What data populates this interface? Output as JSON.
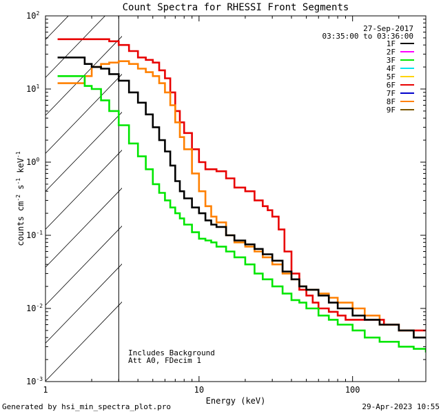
{
  "chart_data": {
    "type": "line",
    "title": "Count Spectra for RHESSI Front Segments",
    "xlabel": "Energy (keV)",
    "ylabel": "counts cm",
    "ylabel_sup1": "-2",
    "ylabel_mid1": " s",
    "ylabel_sup2": "-1",
    "ylabel_mid2": " keV",
    "ylabel_sup3": "-1",
    "xscale": "log",
    "yscale": "log",
    "xlim": [
      1,
      300
    ],
    "ylim": [
      0.001,
      100
    ],
    "x_tick_labels": [
      {
        "value": 1,
        "label": "1"
      },
      {
        "value": 10,
        "label": "10"
      },
      {
        "value": 100,
        "label": "100"
      }
    ],
    "y_tick_labels": [
      {
        "value": 100,
        "base": "10",
        "exp": "2"
      },
      {
        "value": 10,
        "base": "10",
        "exp": "1"
      },
      {
        "value": 1,
        "base": "10",
        "exp": "0"
      },
      {
        "value": 0.1,
        "base": "10",
        "exp": "-1"
      },
      {
        "value": 0.01,
        "base": "10",
        "exp": "-2"
      },
      {
        "value": 0.001,
        "base": "10",
        "exp": "-3"
      }
    ],
    "shaded_region": {
      "from": 1,
      "to": 3,
      "pattern": "diagonal hatch"
    },
    "date": "27-Sep-2017",
    "time_range": "03:35:00 to 03:36:00",
    "annotations": [
      "Includes Background",
      "Att A0, FDecim 1"
    ],
    "legend": [
      {
        "name": "1F",
        "color": "#000000"
      },
      {
        "name": "2F",
        "color": "#ff00ff"
      },
      {
        "name": "3F",
        "color": "#00e600"
      },
      {
        "name": "4F",
        "color": "#00e5ee"
      },
      {
        "name": "5F",
        "color": "#ffd400"
      },
      {
        "name": "6F",
        "color": "#e80000"
      },
      {
        "name": "7F",
        "color": "#0000cc"
      },
      {
        "name": "8F",
        "color": "#ff8000"
      },
      {
        "name": "9F",
        "color": "#7a5500"
      }
    ],
    "series": [
      {
        "name": "6F",
        "color": "#e80000",
        "x": [
          1.2,
          2.0,
          2.6,
          3.0,
          3.5,
          4.0,
          4.5,
          5.0,
          5.5,
          6.0,
          6.5,
          7.0,
          7.5,
          8.0,
          9.0,
          10.0,
          11.0,
          13.0,
          15.0,
          17.0,
          20.0,
          23.0,
          26.0,
          28.0,
          30.0,
          33.0,
          36.0,
          40.0,
          45.0,
          50.0,
          55.0,
          60.0,
          70.0,
          80.0,
          90.0,
          100.0,
          120.0,
          140.0,
          160.0,
          180.0,
          200.0,
          220.0,
          250.0,
          280.0,
          300.0
        ],
        "y": [
          48,
          48,
          45,
          40,
          33,
          27,
          25,
          23,
          18,
          14,
          9,
          5,
          3.5,
          2.5,
          1.5,
          1.0,
          0.8,
          0.75,
          0.6,
          0.45,
          0.4,
          0.3,
          0.25,
          0.22,
          0.18,
          0.12,
          0.06,
          0.03,
          0.018,
          0.015,
          0.012,
          0.01,
          0.009,
          0.008,
          0.007,
          0.007,
          0.007,
          0.007,
          0.006,
          0.006,
          0.005,
          0.005,
          0.005,
          0.005,
          0.005
        ]
      },
      {
        "name": "8F",
        "color": "#ff8000",
        "x": [
          1.2,
          1.5,
          1.8,
          2.0,
          2.3,
          2.6,
          3.0,
          3.5,
          4.0,
          4.5,
          5.0,
          5.5,
          6.0,
          6.5,
          7.0,
          7.5,
          8.0,
          9.0,
          10.0,
          11.0,
          12.0,
          13.0,
          15.0,
          17.0,
          20.0,
          23.0,
          26.0,
          30.0,
          35.0,
          40.0,
          45.0,
          50.0,
          60.0,
          70.0,
          80.0,
          100.0,
          120.0,
          150.0,
          200.0,
          250.0,
          300.0
        ],
        "y": [
          12,
          12,
          15,
          20,
          22,
          23,
          24,
          22,
          19,
          17,
          15,
          12,
          9,
          6,
          3.5,
          2.2,
          1.5,
          0.7,
          0.4,
          0.25,
          0.18,
          0.15,
          0.1,
          0.08,
          0.07,
          0.06,
          0.05,
          0.04,
          0.03,
          0.025,
          0.02,
          0.018,
          0.016,
          0.014,
          0.012,
          0.01,
          0.008,
          0.006,
          0.005,
          0.004,
          0.004
        ]
      },
      {
        "name": "1F",
        "color": "#000000",
        "x": [
          1.2,
          1.5,
          1.8,
          2.0,
          2.3,
          2.6,
          3.0,
          3.5,
          4.0,
          4.5,
          5.0,
          5.5,
          6.0,
          6.5,
          7.0,
          7.5,
          8.0,
          9.0,
          10.0,
          11.0,
          12.0,
          13.0,
          15.0,
          17.0,
          20.0,
          23.0,
          26.0,
          30.0,
          35.0,
          40.0,
          45.0,
          50.0,
          60.0,
          70.0,
          80.0,
          100.0,
          120.0,
          150.0,
          200.0,
          250.0,
          300.0
        ],
        "y": [
          27,
          27,
          22,
          20,
          19,
          16,
          13,
          9,
          6.5,
          4.5,
          3.0,
          2.0,
          1.4,
          0.9,
          0.55,
          0.4,
          0.32,
          0.24,
          0.2,
          0.16,
          0.14,
          0.13,
          0.1,
          0.085,
          0.075,
          0.065,
          0.055,
          0.045,
          0.032,
          0.025,
          0.02,
          0.018,
          0.015,
          0.012,
          0.01,
          0.008,
          0.007,
          0.006,
          0.005,
          0.004,
          0.004
        ]
      },
      {
        "name": "3F",
        "color": "#00e600",
        "x": [
          1.2,
          1.5,
          1.8,
          2.0,
          2.3,
          2.6,
          3.0,
          3.5,
          4.0,
          4.5,
          5.0,
          5.5,
          6.0,
          6.5,
          7.0,
          7.5,
          8.0,
          9.0,
          10.0,
          11.0,
          12.0,
          13.0,
          15.0,
          17.0,
          20.0,
          23.0,
          26.0,
          30.0,
          35.0,
          40.0,
          45.0,
          50.0,
          60.0,
          70.0,
          80.0,
          100.0,
          120.0,
          150.0,
          200.0,
          250.0,
          300.0
        ],
        "y": [
          15,
          15,
          11,
          10,
          7,
          5,
          3.2,
          1.8,
          1.2,
          0.8,
          0.5,
          0.38,
          0.3,
          0.24,
          0.2,
          0.17,
          0.14,
          0.11,
          0.09,
          0.085,
          0.08,
          0.07,
          0.06,
          0.05,
          0.04,
          0.03,
          0.025,
          0.02,
          0.016,
          0.013,
          0.012,
          0.01,
          0.008,
          0.007,
          0.006,
          0.005,
          0.004,
          0.0035,
          0.003,
          0.0028,
          0.0025
        ]
      }
    ]
  },
  "footer": {
    "generated_by": "Generated by hsi_min_spectra_plot.pro",
    "timestamp": "29-Apr-2023 10:55"
  }
}
